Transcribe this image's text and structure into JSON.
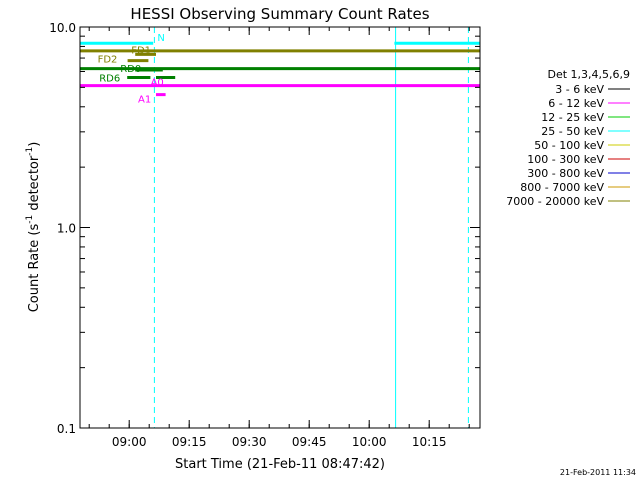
{
  "chart_data": {
    "type": "line",
    "title": "HESSI Observing Summary Count Rates",
    "xlabel": "Start Time (21-Feb-11 08:47:42)",
    "ylabel": "Count Rate (s⁻¹ detector⁻¹)",
    "ylabel_parts": [
      "Count Rate (s",
      "-1",
      " detector",
      "-1",
      ")"
    ],
    "yscale": "log",
    "ylim": [
      0.1,
      10.0
    ],
    "xlim_minutes": [
      0,
      100
    ],
    "x_unit": "minutes after 08:47:42",
    "x_ticks": [
      {
        "label": "09:00",
        "minutes": 12.3
      },
      {
        "label": "09:15",
        "minutes": 27.3
      },
      {
        "label": "09:30",
        "minutes": 42.3
      },
      {
        "label": "09:45",
        "minutes": 57.3
      },
      {
        "label": "10:00",
        "minutes": 72.3
      },
      {
        "label": "10:15",
        "minutes": 87.3
      }
    ],
    "y_ticks": [
      {
        "label": "0.1",
        "value": 0.1
      },
      {
        "label": "1.0",
        "value": 1.0
      },
      {
        "label": "10.0",
        "value": 10.0
      }
    ],
    "legend": {
      "placement": "right",
      "title": "Det 1,3,4,5,6,9",
      "entries": [
        {
          "label": "3 - 6 keV",
          "color": "#000000"
        },
        {
          "label": "6 - 12 keV",
          "color": "#ff00ff"
        },
        {
          "label": "12 - 25 keV",
          "color": "#00cc00"
        },
        {
          "label": "25 - 50 keV",
          "color": "#00ffff"
        },
        {
          "label": "50 - 100 keV",
          "color": "#cccc00"
        },
        {
          "label": "100 - 300 keV",
          "color": "#cc0000"
        },
        {
          "label": "300 - 800 keV",
          "color": "#0000cc"
        },
        {
          "label": "800 - 7000 keV",
          "color": "#cc9900"
        },
        {
          "label": "7000 - 20000 keV",
          "color": "#808000"
        }
      ]
    },
    "series": [
      {
        "color": "#00ffff",
        "y": 8.3,
        "segments": [
          [
            0,
            18.3
          ],
          [
            78.6,
            100
          ]
        ]
      },
      {
        "color": "#808000",
        "y": 7.6,
        "segments": [
          [
            0,
            100
          ]
        ]
      },
      {
        "color": "#008000",
        "y": 6.2,
        "segments": [
          [
            0,
            100
          ]
        ]
      },
      {
        "color": "#ff00ff",
        "y": 5.1,
        "segments": [
          [
            0,
            100
          ]
        ]
      }
    ],
    "flags": [
      {
        "label": "N",
        "color": "#00ffff",
        "y": 8.3,
        "segments": [
          [
            18.6,
            18.6
          ]
        ]
      },
      {
        "label": "FD1",
        "color": "#808000",
        "y": 7.3,
        "segments": [
          [
            13.8,
            19.0
          ]
        ]
      },
      {
        "label": "FD2",
        "color": "#808000",
        "y": 6.8,
        "segments": [
          [
            11.9,
            17.1
          ]
        ]
      },
      {
        "label": "RD0",
        "color": "#008000",
        "y": 6.1,
        "segments": [
          [
            13.8,
            20.7
          ]
        ]
      },
      {
        "label": "RD6",
        "color": "#008000",
        "y": 5.6,
        "segments": [
          [
            11.8,
            17.6
          ],
          [
            19.0,
            23.8
          ]
        ]
      },
      {
        "label": "A0",
        "color": "#ff00ff",
        "y": 5.1,
        "segments": [
          [
            17.4,
            17.4
          ]
        ]
      },
      {
        "label": "A1",
        "color": "#ff00ff",
        "y": 4.6,
        "segments": [
          [
            19.0,
            21.4
          ]
        ]
      }
    ],
    "vlines": [
      {
        "minutes": 0.0,
        "style": "solid",
        "color": "#00ffff"
      },
      {
        "minutes": 18.6,
        "style": "dashed",
        "color": "#00ffff"
      },
      {
        "minutes": 78.9,
        "style": "solid",
        "color": "#00ffff"
      },
      {
        "minutes": 97.1,
        "style": "dashed",
        "color": "#00ffff"
      }
    ]
  },
  "footer": {
    "timestamp": "21-Feb-2011 11:34"
  }
}
